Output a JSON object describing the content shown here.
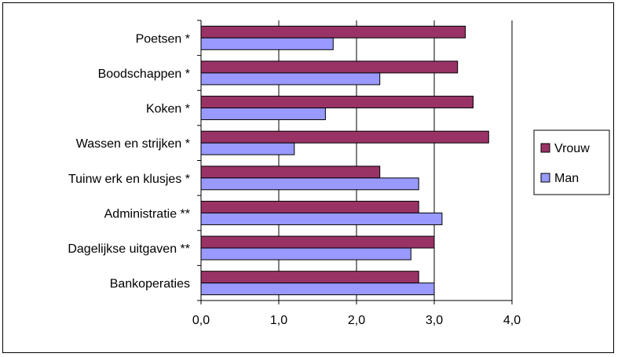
{
  "chart_data": {
    "type": "bar",
    "orientation": "horizontal",
    "categories": [
      "Poetsen *",
      "Boodschappen *",
      "Koken *",
      "Wassen en strijken *",
      "Tuinw erk en klusjes *",
      "Administratie **",
      "Dagelijkse uitgaven **",
      "Bankoperaties"
    ],
    "series": [
      {
        "name": "Vrouw",
        "color": "#993366",
        "values": [
          3.4,
          3.3,
          3.5,
          3.7,
          2.3,
          2.8,
          3.0,
          2.8
        ]
      },
      {
        "name": "Man",
        "color": "#9999ff",
        "values": [
          1.7,
          2.3,
          1.6,
          1.2,
          2.8,
          3.1,
          2.7,
          3.0
        ]
      }
    ],
    "xlim": [
      0,
      4
    ],
    "xticks": [
      "0,0",
      "1,0",
      "2,0",
      "3,0",
      "4,0"
    ],
    "grid": true,
    "legend": "right"
  }
}
